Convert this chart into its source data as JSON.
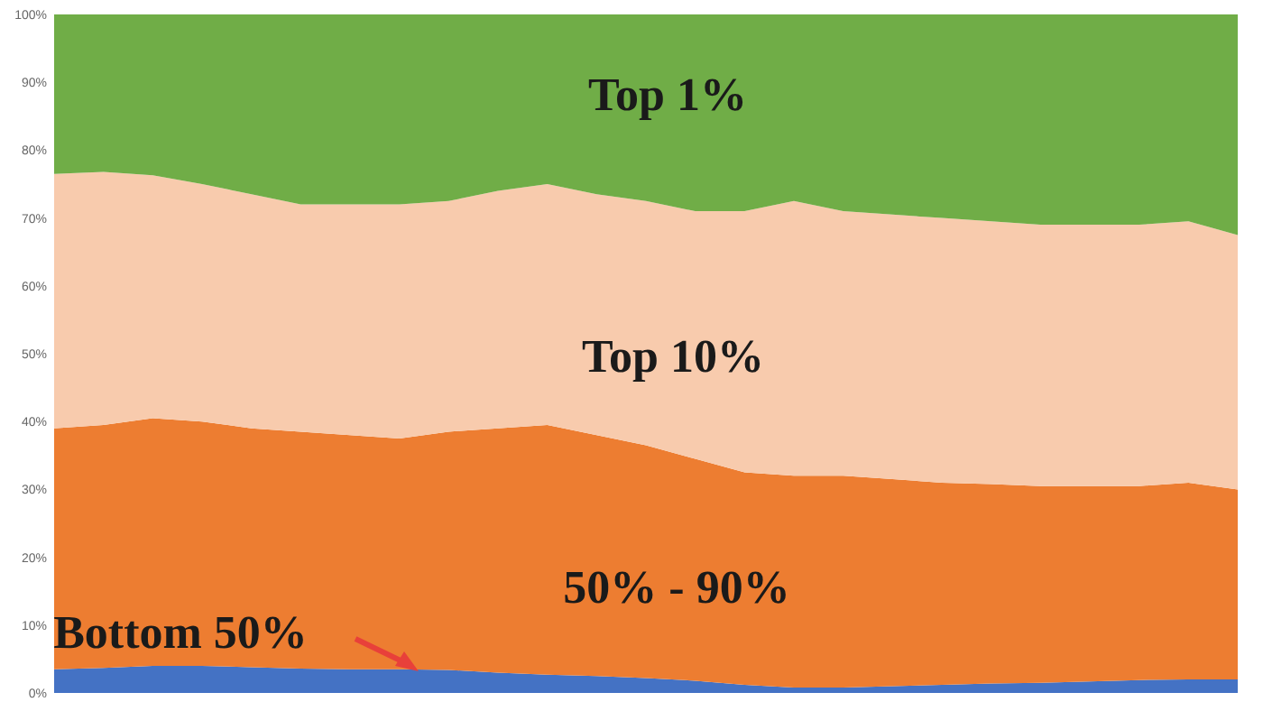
{
  "chart_data": {
    "type": "area",
    "stacked": true,
    "legend": false,
    "grid": false,
    "tick_labels": "y",
    "categories": [
      null,
      null,
      null,
      null,
      null,
      null,
      null,
      null,
      null,
      null,
      null,
      null,
      null,
      null,
      null,
      null,
      null,
      null,
      null,
      null,
      null,
      null,
      null,
      null,
      null
    ],
    "ylim": [
      0,
      100
    ],
    "yticks": [
      {
        "value": 0,
        "label": "0%"
      },
      {
        "value": 10,
        "label": "10%"
      },
      {
        "value": 20,
        "label": "20%"
      },
      {
        "value": 30,
        "label": "30%"
      },
      {
        "value": 40,
        "label": "40%"
      },
      {
        "value": 50,
        "label": "50%"
      },
      {
        "value": 60,
        "label": "60%"
      },
      {
        "value": 70,
        "label": "70%"
      },
      {
        "value": 80,
        "label": "80%"
      },
      {
        "value": 90,
        "label": "90%"
      },
      {
        "value": 100,
        "label": "100%"
      }
    ],
    "series": [
      {
        "name": "Bottom 50%",
        "color": "#4472c4",
        "values": [
          3.5,
          3.7,
          4,
          4,
          3.8,
          3.6,
          3.5,
          3.5,
          3.4,
          3,
          2.7,
          2.5,
          2.2,
          1.8,
          1.2,
          0.8,
          0.8,
          1,
          1.2,
          1.4,
          1.5,
          1.7,
          1.9,
          2,
          2
        ]
      },
      {
        "name": "50% - 90%",
        "color": "#ed7d31",
        "values": [
          35.5,
          35.8,
          36.5,
          36,
          35.2,
          34.9,
          34.5,
          34,
          35.1,
          36,
          36.8,
          35.5,
          34.3,
          32.7,
          31.3,
          31.2,
          31.2,
          30.5,
          29.8,
          29.4,
          29,
          28.8,
          28.6,
          29,
          28
        ]
      },
      {
        "name": "Top 10%",
        "color": "#f8cbad",
        "values": [
          37.5,
          37.3,
          35.8,
          35,
          34.5,
          33.5,
          34,
          34.5,
          34,
          35,
          35.5,
          35.5,
          36,
          36.5,
          38.5,
          40.5,
          39,
          39,
          39,
          38.7,
          38.5,
          38.5,
          38.5,
          38.5,
          37.5
        ]
      },
      {
        "name": "Top 1%",
        "color": "#70ad47",
        "values": [
          23.5,
          23.2,
          23.7,
          25,
          26.5,
          28,
          28,
          28,
          27.5,
          26,
          25,
          26.5,
          27.5,
          29,
          29,
          27.5,
          29,
          29.5,
          30,
          30.5,
          31,
          31,
          31,
          30.5,
          32.5
        ]
      }
    ]
  }
}
